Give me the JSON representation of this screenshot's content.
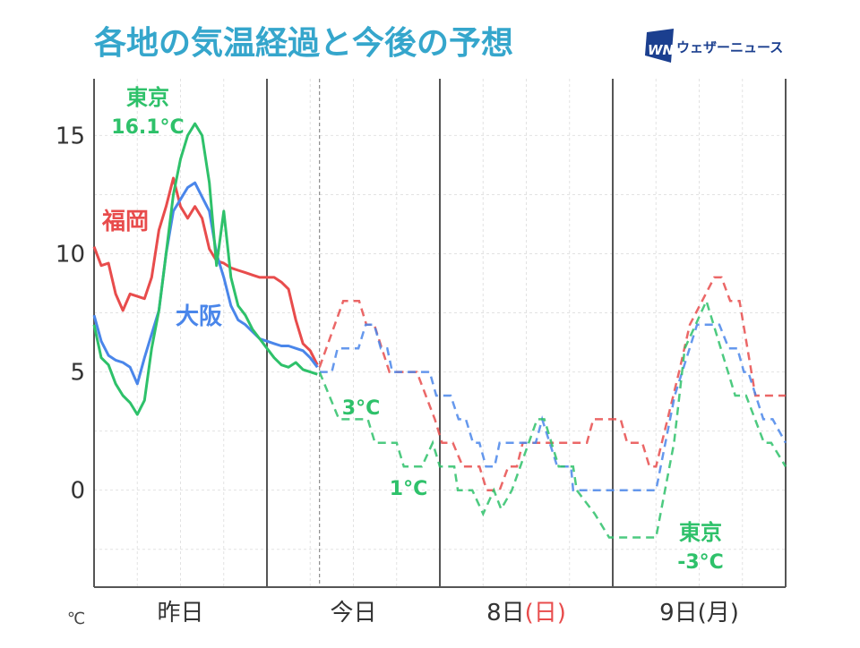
{
  "header": {
    "title": "各地の気温経過と今後の予想",
    "logo_mark": "WN",
    "logo_text": "ウェザーニュース"
  },
  "colors": {
    "title": "#35a6cc",
    "tokyo": "#2ec16a",
    "osaka": "#4a86ea",
    "fukuoka": "#e84c4c",
    "sunday": "#e84c4c",
    "axis": "#555555",
    "logo": "#1b3f8f"
  },
  "chart_data": {
    "type": "line",
    "title": "各地の気温経過と今後の予想",
    "ylabel": "℃",
    "ylim": [
      -4.1,
      17.4
    ],
    "xlim_hours": [
      0,
      96
    ],
    "now_hour": 31.3,
    "yticks": [
      0,
      5,
      10,
      15
    ],
    "ytick_labels": [
      "0",
      "5",
      "10",
      "15"
    ],
    "grid": true,
    "day_labels": [
      {
        "text": "昨日",
        "suffix": "",
        "suffix_holiday": false
      },
      {
        "text": "今日",
        "suffix": "",
        "suffix_holiday": false
      },
      {
        "text": "8日",
        "suffix": "(日)",
        "suffix_holiday": true
      },
      {
        "text": "9日",
        "suffix": "(月)",
        "suffix_holiday": false
      }
    ],
    "series": [
      {
        "name": "東京",
        "color_key": "tokyo",
        "observed_hourly": [
          7.0,
          5.6,
          5.3,
          4.5,
          4.0,
          3.7,
          3.2,
          3.8,
          6.0,
          7.6,
          10.0,
          12.5,
          14.0,
          15.0,
          15.5,
          15.0,
          13.0,
          9.5,
          11.8,
          9.0,
          7.8,
          7.4,
          6.8,
          6.4,
          6.0,
          5.6,
          5.3,
          5.2,
          5.4,
          5.1,
          5.0,
          4.9
        ],
        "forecast": [
          [
            31.3,
            5
          ],
          [
            34,
            3
          ],
          [
            38,
            3
          ],
          [
            39,
            2
          ],
          [
            42,
            2
          ],
          [
            43,
            1
          ],
          [
            45.5,
            1
          ],
          [
            47,
            2
          ],
          [
            48,
            1
          ],
          [
            50,
            1
          ],
          [
            50.5,
            0
          ],
          [
            52.5,
            0
          ],
          [
            54,
            -1
          ],
          [
            55.5,
            0
          ],
          [
            56.5,
            -0.8
          ],
          [
            58,
            0
          ],
          [
            61.5,
            3
          ],
          [
            62.5,
            3
          ],
          [
            64.5,
            1
          ],
          [
            66.5,
            1
          ],
          [
            67,
            0
          ],
          [
            69.5,
            -1
          ],
          [
            71.5,
            -2
          ],
          [
            78,
            -2
          ],
          [
            80.5,
            2
          ],
          [
            82,
            6
          ],
          [
            83.5,
            7
          ],
          [
            85,
            8
          ],
          [
            87,
            6
          ],
          [
            89,
            4
          ],
          [
            90.5,
            4
          ],
          [
            93,
            2
          ],
          [
            94,
            2
          ],
          [
            96,
            1
          ]
        ]
      },
      {
        "name": "大阪",
        "color_key": "osaka",
        "observed_hourly": [
          7.4,
          6.3,
          5.7,
          5.5,
          5.4,
          5.2,
          4.5,
          5.6,
          6.6,
          7.6,
          10.0,
          11.8,
          12.3,
          12.8,
          13.0,
          12.4,
          11.8,
          10.0,
          9.0,
          7.8,
          7.2,
          7.0,
          6.7,
          6.4,
          6.3,
          6.2,
          6.1,
          6.1,
          6.0,
          5.9,
          5.6,
          5.2
        ],
        "forecast": [
          [
            31.3,
            5
          ],
          [
            33,
            5
          ],
          [
            33.8,
            6
          ],
          [
            36.7,
            6
          ],
          [
            37.7,
            7
          ],
          [
            38.9,
            7
          ],
          [
            39.8,
            6
          ],
          [
            40.7,
            6
          ],
          [
            41.4,
            5
          ],
          [
            46.6,
            5
          ],
          [
            47.5,
            4
          ],
          [
            49.5,
            4
          ],
          [
            50.6,
            3
          ],
          [
            51.6,
            3
          ],
          [
            52.6,
            2
          ],
          [
            53.5,
            2
          ],
          [
            54.4,
            1
          ],
          [
            55.6,
            1
          ],
          [
            56.3,
            2
          ],
          [
            61.3,
            2
          ],
          [
            62.2,
            3
          ],
          [
            64.3,
            1
          ],
          [
            66.2,
            1
          ],
          [
            66.5,
            0
          ],
          [
            78,
            0
          ],
          [
            80.6,
            4
          ],
          [
            83.7,
            7
          ],
          [
            86.8,
            7
          ],
          [
            88.1,
            6
          ],
          [
            89.3,
            6
          ],
          [
            90.2,
            5
          ],
          [
            90.8,
            5
          ],
          [
            92.9,
            3
          ],
          [
            94.2,
            3
          ],
          [
            96,
            2
          ]
        ]
      },
      {
        "name": "福岡",
        "color_key": "fukuoka",
        "observed_hourly": [
          10.3,
          9.5,
          9.6,
          8.3,
          7.6,
          8.3,
          8.2,
          8.1,
          9.0,
          11.0,
          12.0,
          13.2,
          12.0,
          11.5,
          12.0,
          11.5,
          10.2,
          9.7,
          9.6,
          9.4,
          9.3,
          9.2,
          9.1,
          9.0,
          9.0,
          9.0,
          8.8,
          8.5,
          7.2,
          6.2,
          5.9,
          5.3
        ],
        "forecast": [
          [
            31.3,
            5.2
          ],
          [
            34.6,
            8
          ],
          [
            36.8,
            8
          ],
          [
            37.8,
            7
          ],
          [
            38.9,
            7
          ],
          [
            41,
            5
          ],
          [
            44.8,
            5
          ],
          [
            47.3,
            3
          ],
          [
            48.3,
            2
          ],
          [
            49.8,
            2
          ],
          [
            51.2,
            1
          ],
          [
            53.5,
            1
          ],
          [
            54.5,
            0
          ],
          [
            56.3,
            0
          ],
          [
            57.5,
            1
          ],
          [
            58.7,
            1
          ],
          [
            59.5,
            2
          ],
          [
            68.4,
            2
          ],
          [
            69.3,
            3
          ],
          [
            73.1,
            3
          ],
          [
            74,
            2
          ],
          [
            76.1,
            2
          ],
          [
            77.1,
            1
          ],
          [
            78,
            1
          ],
          [
            81.2,
            5
          ],
          [
            82.7,
            7
          ],
          [
            86.1,
            9
          ],
          [
            87.1,
            9
          ],
          [
            88.3,
            8
          ],
          [
            89.6,
            8
          ],
          [
            91.8,
            4
          ],
          [
            96,
            4
          ]
        ]
      }
    ],
    "annotations": [
      {
        "name": "東京",
        "value": "16.1°C",
        "color_key": "tokyo"
      },
      {
        "name": "福岡",
        "value": "",
        "color_key": "fukuoka"
      },
      {
        "name": "大阪",
        "value": "",
        "color_key": "osaka"
      },
      {
        "name": "",
        "value": "3°C",
        "color_key": "tokyo"
      },
      {
        "name": "",
        "value": "1°C",
        "color_key": "tokyo"
      },
      {
        "name": "東京",
        "value": "-3°C",
        "color_key": "tokyo"
      }
    ]
  }
}
